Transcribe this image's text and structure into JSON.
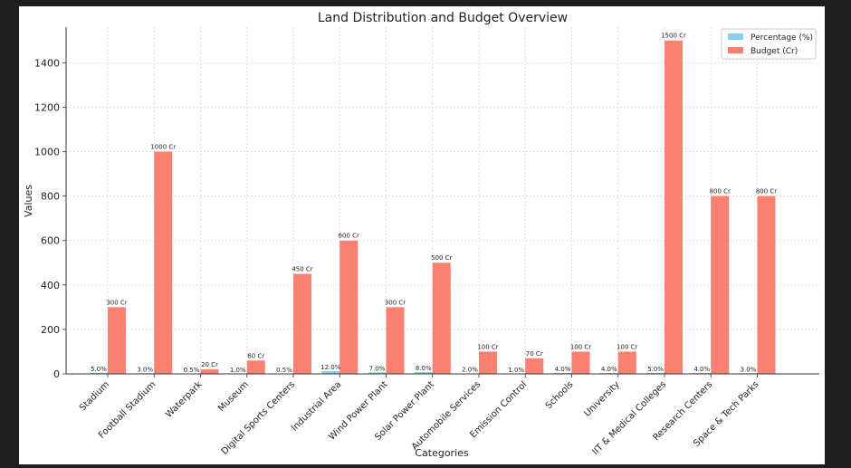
{
  "chart_data": {
    "type": "bar",
    "title": "Land Distribution and Budget Overview",
    "xlabel": "Categories",
    "ylabel": "Values",
    "ylim": [
      0,
      1560
    ],
    "yticks": [
      0,
      200,
      400,
      600,
      800,
      1000,
      1200,
      1400
    ],
    "grid": true,
    "legend_position": "top-right",
    "categories": [
      "Stadium",
      "Football Stadium",
      "Waterpark",
      "Museum",
      "Digital Sports Centers",
      "Industrial Area",
      "Wind Power Plant",
      "Solar Power Plant",
      "Automobile Services",
      "Emission Control",
      "Schools",
      "University",
      "IIT & Medical Colleges",
      "Research Centers",
      "Space & Tech Parks"
    ],
    "series": [
      {
        "name": "Percentage (%)",
        "color": "#87ceeb",
        "values": [
          5.0,
          3.0,
          0.5,
          1.0,
          0.5,
          12.0,
          7.0,
          8.0,
          2.0,
          1.0,
          4.0,
          4.0,
          5.0,
          4.0,
          3.0
        ],
        "labels": [
          "5.0%",
          "3.0%",
          "0.5%",
          "1.0%",
          "0.5%",
          "12.0%",
          "7.0%",
          "8.0%",
          "2.0%",
          "1.0%",
          "4.0%",
          "4.0%",
          "5.0%",
          "4.0%",
          "3.0%"
        ]
      },
      {
        "name": "Budget (Cr)",
        "color": "#fa8072",
        "values": [
          300,
          1000,
          20,
          60,
          450,
          600,
          300,
          500,
          100,
          70,
          100,
          100,
          1500,
          800,
          800
        ],
        "labels": [
          "300 Cr",
          "1000 Cr",
          "20 Cr",
          "60 Cr",
          "450 Cr",
          "600 Cr",
          "300 Cr",
          "500 Cr",
          "100 Cr",
          "70 Cr",
          "100 Cr",
          "100 Cr",
          "1500 Cr",
          "800 Cr",
          "800 Cr"
        ]
      }
    ]
  }
}
